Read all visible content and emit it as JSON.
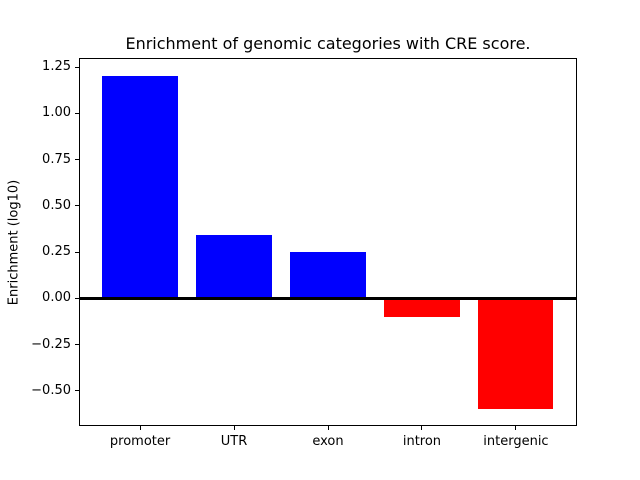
{
  "figure": {
    "background": "#ffffff",
    "text_color": "#000000"
  },
  "chart_data": {
    "type": "bar",
    "title": "Enrichment of genomic categories with CRE score.",
    "xlabel": "",
    "ylabel": "Enrichment (log10)",
    "categories": [
      "promoter",
      "UTR",
      "exon",
      "intron",
      "intergenic"
    ],
    "values": [
      1.205,
      0.345,
      0.252,
      -0.099,
      -0.598
    ],
    "positive_color": "#0000ff",
    "negative_color": "#ff0000",
    "ylim": [
      -0.69,
      1.3
    ],
    "xlim": [
      -0.65,
      4.65
    ],
    "yticks": [
      1.25,
      1.0,
      0.75,
      0.5,
      0.25,
      0.0,
      -0.25,
      -0.5
    ],
    "ytick_labels": [
      "1.25",
      "1.00",
      "0.75",
      "0.50",
      "0.25",
      "0.00",
      "−0.25",
      "−0.50"
    ],
    "bar_width": 0.8,
    "zero_line": {
      "value": 0,
      "color": "#000000"
    },
    "axis_color": "#000000",
    "grid": false,
    "legend": "none"
  }
}
